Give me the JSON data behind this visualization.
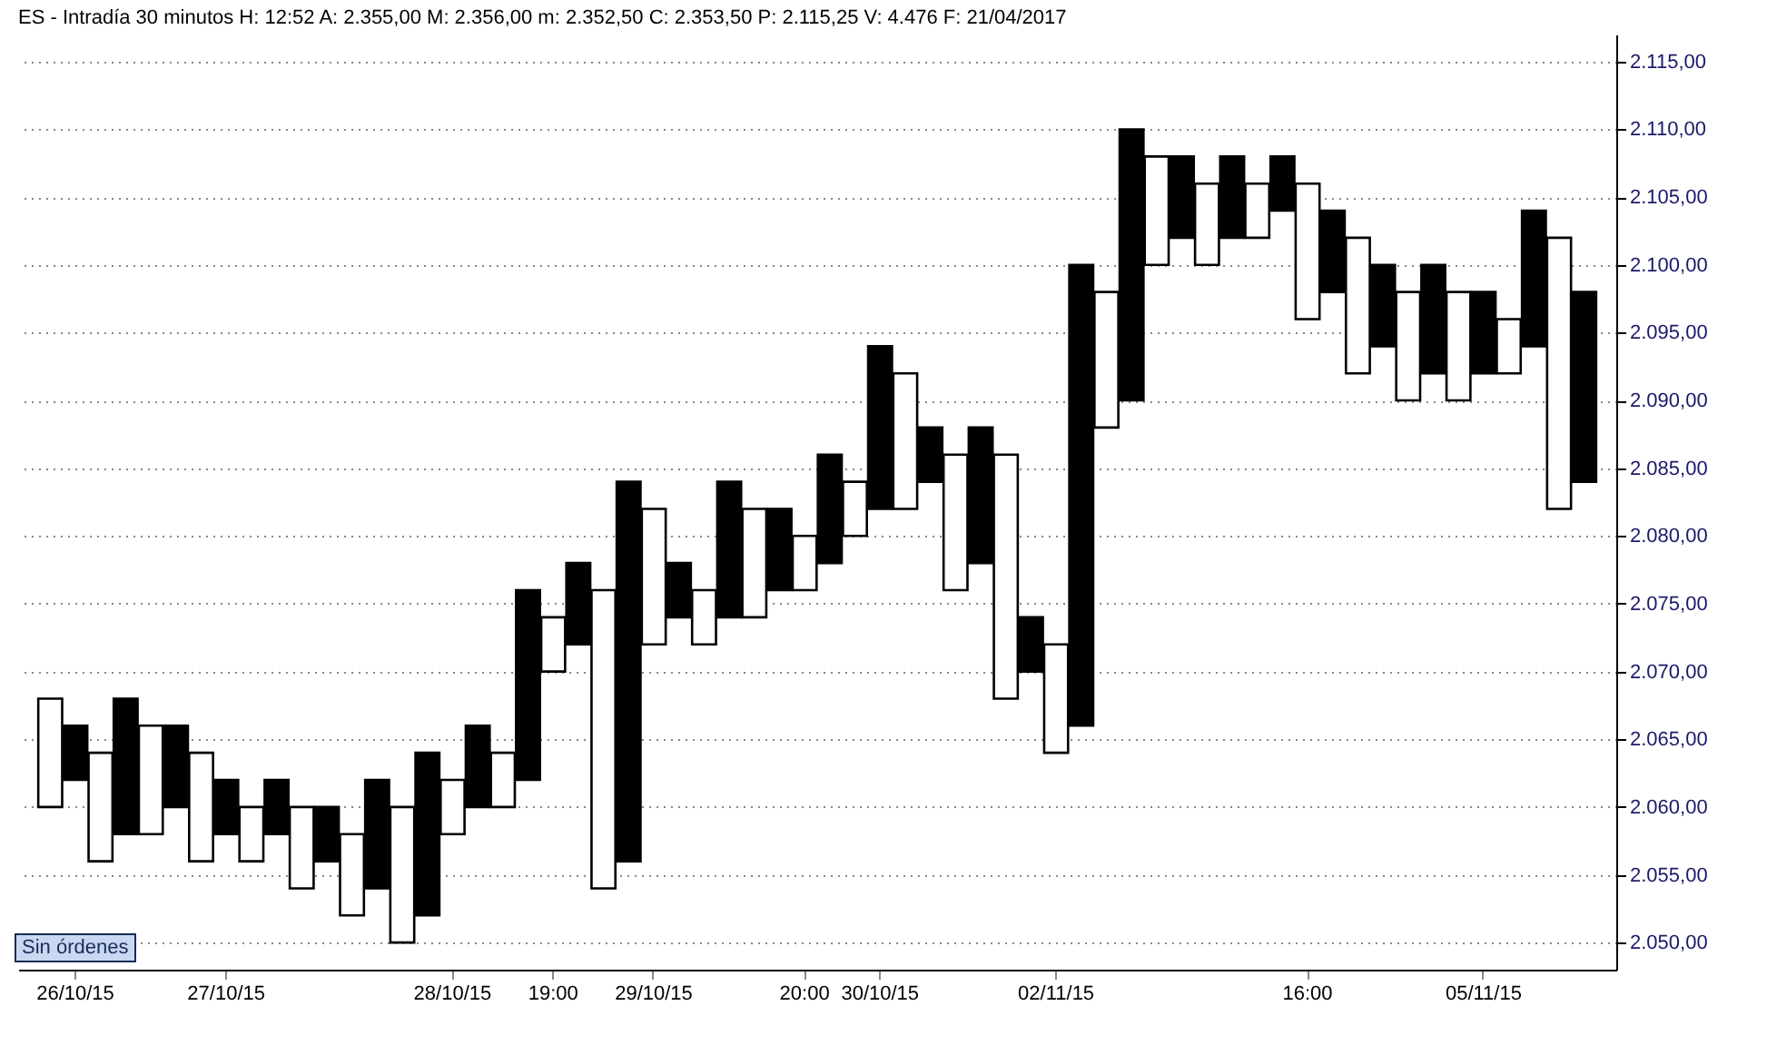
{
  "chart_data": {
    "type": "bar",
    "title": "ES - Intradía 30 minutos H: 12:52 A: 2.355,00 M: 2.356,00 m: 2.352,50 C: 2.353,50 P: 2.115,25 V: 4.476 F: 21/04/2017",
    "annotations": [
      "Sin órdenes"
    ],
    "categories": [
      null,
      "26/10/15",
      null,
      null,
      null,
      null,
      null,
      "27/10/15",
      null,
      null,
      null,
      null,
      null,
      null,
      null,
      null,
      "28/10/15",
      null,
      null,
      null,
      "19:00",
      null,
      null,
      null,
      "29/10/15",
      null,
      null,
      null,
      null,
      null,
      "20:00",
      null,
      null,
      "30/10/15",
      null,
      null,
      null,
      null,
      null,
      null,
      "02/11/15",
      null,
      null,
      null,
      null,
      null,
      null,
      null,
      null,
      null,
      "16:00",
      null,
      null,
      null,
      null,
      null,
      null,
      "05/11/15",
      null,
      null,
      null,
      null
    ],
    "base": [
      2060,
      2062,
      2056,
      2058,
      2058,
      2060,
      2056,
      2058,
      2056,
      2058,
      2054,
      2056,
      2052,
      2054,
      2050,
      2052,
      2058,
      2060,
      2060,
      2062,
      2070,
      2072,
      2054,
      2056,
      2072,
      2074,
      2072,
      2074,
      2074,
      2076,
      2076,
      2078,
      2080,
      2082,
      2082,
      2084,
      2076,
      2078,
      2068,
      2070,
      2064,
      2066,
      2088,
      2090,
      2100,
      2102,
      2100,
      2102,
      2102,
      2104,
      2096,
      2098,
      2092,
      2094,
      2090,
      2092,
      2090,
      2092,
      2092,
      2094,
      2082,
      2084
    ],
    "values": [
      8,
      4,
      8,
      10,
      8,
      6,
      8,
      4,
      4,
      4,
      6,
      4,
      6,
      8,
      10,
      12,
      4,
      6,
      4,
      14,
      4,
      6,
      22,
      28,
      10,
      4,
      4,
      10,
      8,
      6,
      4,
      8,
      4,
      12,
      10,
      4,
      10,
      10,
      18,
      4,
      8,
      34,
      10,
      20,
      8,
      6,
      6,
      6,
      4,
      4,
      10,
      6,
      10,
      6,
      8,
      8,
      8,
      6,
      4,
      10,
      20,
      14
    ],
    "colors": [
      "#ffffff",
      "#000000",
      "#ffffff",
      "#000000",
      "#ffffff",
      "#000000",
      "#ffffff",
      "#000000",
      "#ffffff",
      "#000000",
      "#ffffff",
      "#000000",
      "#ffffff",
      "#000000",
      "#ffffff",
      "#000000",
      "#ffffff",
      "#000000",
      "#ffffff",
      "#000000",
      "#ffffff",
      "#000000",
      "#ffffff",
      "#000000",
      "#ffffff",
      "#000000",
      "#ffffff",
      "#000000",
      "#ffffff",
      "#000000",
      "#ffffff",
      "#000000",
      "#ffffff",
      "#000000",
      "#ffffff",
      "#000000",
      "#ffffff",
      "#000000",
      "#ffffff",
      "#000000",
      "#ffffff",
      "#000000",
      "#ffffff",
      "#000000",
      "#ffffff",
      "#000000",
      "#ffffff",
      "#000000",
      "#ffffff",
      "#000000",
      "#ffffff",
      "#000000",
      "#ffffff",
      "#000000",
      "#ffffff",
      "#000000",
      "#ffffff",
      "#000000",
      "#ffffff",
      "#000000",
      "#ffffff",
      "#000000"
    ],
    "ylim": [
      2048,
      2117
    ],
    "yticks": [
      {
        "value": 2050,
        "label": "2.050,00"
      },
      {
        "value": 2055,
        "label": "2.055,00"
      },
      {
        "value": 2060,
        "label": "2.060,00"
      },
      {
        "value": 2065,
        "label": "2.065,00"
      },
      {
        "value": 2070,
        "label": "2.070,00"
      },
      {
        "value": 2075,
        "label": "2.075,00"
      },
      {
        "value": 2080,
        "label": "2.080,00"
      },
      {
        "value": 2085,
        "label": "2.085,00"
      },
      {
        "value": 2090,
        "label": "2.090,00"
      },
      {
        "value": 2095,
        "label": "2.095,00"
      },
      {
        "value": 2100,
        "label": "2.100,00"
      },
      {
        "value": 2105,
        "label": "2.105,00"
      },
      {
        "value": 2110,
        "label": "2.110,00"
      },
      {
        "value": 2115,
        "label": "2.115,00"
      }
    ],
    "grid": "y"
  }
}
